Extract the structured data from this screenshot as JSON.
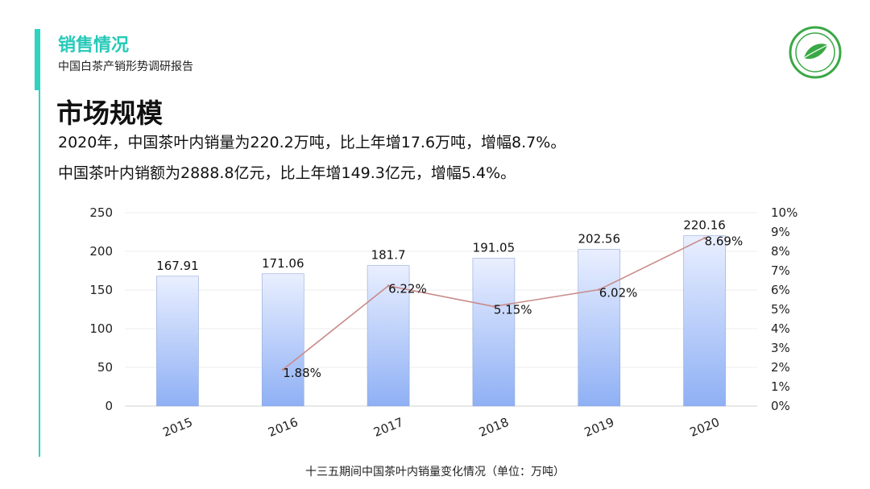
{
  "header": {
    "section_title": "销售情况",
    "subtitle": "中国白茶产销形势调研报告"
  },
  "main": {
    "heading": "市场规模",
    "line1": "2020年，中国茶叶内销量为220.2万吨，比上年增17.6万吨，增幅8.7%。",
    "line2": "中国茶叶内销额为2888.8亿元，比上年增149.3亿元，增幅5.4%。"
  },
  "caption": "十三五期间中国茶叶内销量变化情况（单位：万吨）",
  "colors": {
    "accent": "#2ed3c2",
    "bar_top": "#e9efff",
    "bar_bottom": "#8fb0f5",
    "line": "#c98a8a",
    "logo_green": "#3aa845"
  },
  "chart_data": {
    "type": "bar",
    "categories": [
      "2015",
      "2016",
      "2017",
      "2018",
      "2019",
      "2020"
    ],
    "series": [
      {
        "type": "bar",
        "axis": "left",
        "values": [
          167.91,
          171.06,
          181.7,
          191.05,
          202.56,
          220.16
        ],
        "labels": [
          "167.91",
          "171.06",
          "181.7",
          "191.05",
          "202.56",
          "220.16"
        ]
      },
      {
        "type": "line",
        "axis": "right",
        "values": [
          null,
          1.88,
          6.22,
          5.15,
          6.02,
          8.69
        ],
        "labels": [
          "",
          "1.88%",
          "6.22%",
          "5.15%",
          "6.02%",
          "8.69%"
        ]
      }
    ],
    "y_left": {
      "min": 0,
      "max": 250,
      "ticks": [
        "0",
        "50",
        "100",
        "150",
        "200",
        "250"
      ]
    },
    "y_right": {
      "min": 0,
      "max": 10,
      "ticks": [
        "0%",
        "1%",
        "2%",
        "3%",
        "4%",
        "5%",
        "6%",
        "7%",
        "8%",
        "9%",
        "10%"
      ]
    },
    "grid": true,
    "legend": "none"
  }
}
